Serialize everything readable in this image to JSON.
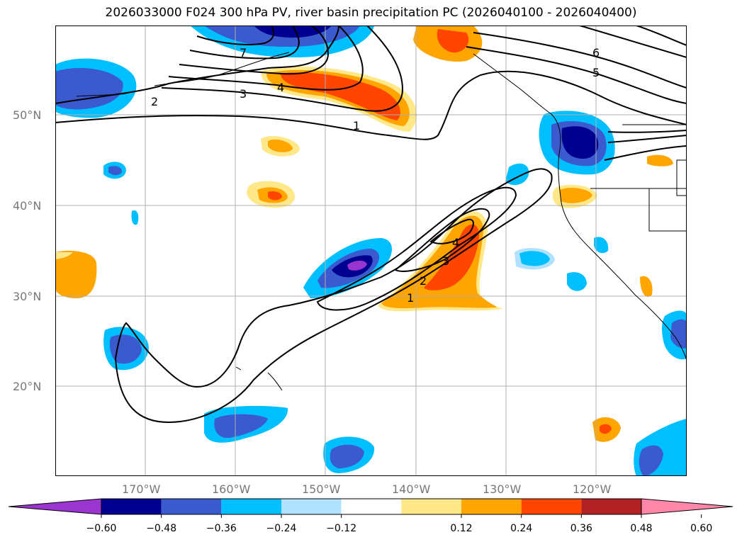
{
  "title": "2026033000 F024 300 hPa PV, river basin precipitation PC (2026040100 - 2026040400)",
  "map": {
    "lat_labels": [
      "50°N",
      "40°N",
      "30°N",
      "20°N"
    ],
    "lon_labels": [
      "170°W",
      "160°W",
      "150°W",
      "140°W",
      "130°W",
      "120°W"
    ],
    "contour_labels": [
      "1",
      "2",
      "3",
      "4",
      "5",
      "6",
      "7",
      "1",
      "2",
      "3",
      "4"
    ]
  },
  "colorbar": {
    "ticks": [
      "−0.60",
      "−0.48",
      "−0.36",
      "−0.24",
      "−0.12",
      "0.12",
      "0.24",
      "0.36",
      "0.48",
      "0.60"
    ],
    "colors": [
      "#9a35d0",
      "#000090",
      "#3a5acd",
      "#00bfff",
      "#b0e2ff",
      "#ffffff",
      "#ffe88a",
      "#ffa500",
      "#ff4500",
      "#b22222",
      "#ff88aa"
    ]
  }
}
